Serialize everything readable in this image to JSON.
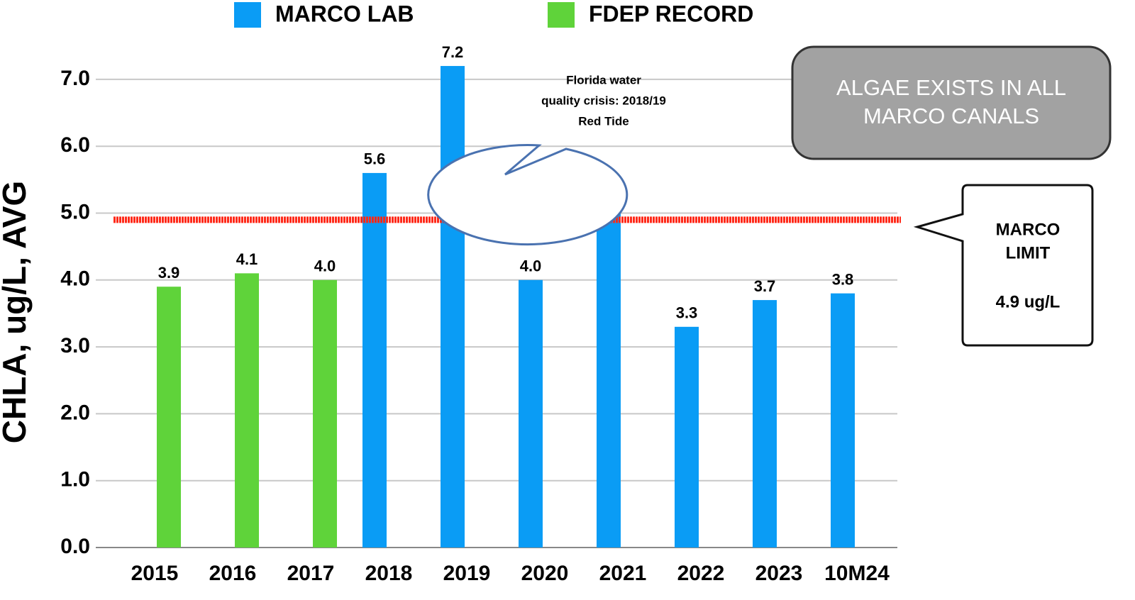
{
  "chart_data": {
    "type": "bar",
    "ylabel": "CHLA, ug/L, AVG",
    "categories": [
      "2015",
      "2016",
      "2017",
      "2018",
      "2019",
      "2020",
      "2021",
      "2022",
      "2023",
      "10M24"
    ],
    "series": [
      {
        "name": "MARCO LAB",
        "color": "#0a9cf5",
        "values": [
          null,
          null,
          null,
          5.6,
          7.2,
          4.0,
          5.1,
          3.3,
          3.7,
          3.8
        ],
        "value_labels": [
          null,
          null,
          null,
          "5.6",
          "7.2",
          "4.0",
          "5.1",
          "3.3",
          "3.7",
          "3.8"
        ]
      },
      {
        "name": "FDEP RECORD",
        "color": "#5fd33a",
        "values": [
          3.9,
          4.1,
          4.0,
          null,
          null,
          null,
          null,
          null,
          null,
          null
        ],
        "value_labels": [
          "3.9",
          "4.1",
          "4.0",
          null,
          null,
          null,
          null,
          null,
          null,
          null
        ]
      }
    ],
    "ylim": [
      0,
      7.5
    ],
    "yticks": [
      {
        "value": 0,
        "label": "0.0"
      },
      {
        "value": 1,
        "label": "1.0"
      },
      {
        "value": 2,
        "label": "2.0"
      },
      {
        "value": 3,
        "label": "3.0"
      },
      {
        "value": 4,
        "label": "4.0"
      },
      {
        "value": 5,
        "label": "5.0"
      },
      {
        "value": 6,
        "label": "6.0"
      },
      {
        "value": 7,
        "label": "7.0"
      }
    ],
    "grid": true,
    "limit": {
      "value": 4.9,
      "color": "#ff2a1a",
      "title": [
        "MARCO",
        "LIMIT"
      ],
      "label": "4.9 ug/L"
    },
    "callout": {
      "lines": [
        "Florida water",
        "quality crisis: 2018/19",
        "Red Tide"
      ]
    },
    "note": {
      "lines": [
        "ALGAE EXISTS IN ALL",
        "MARCO CANALS"
      ]
    }
  }
}
